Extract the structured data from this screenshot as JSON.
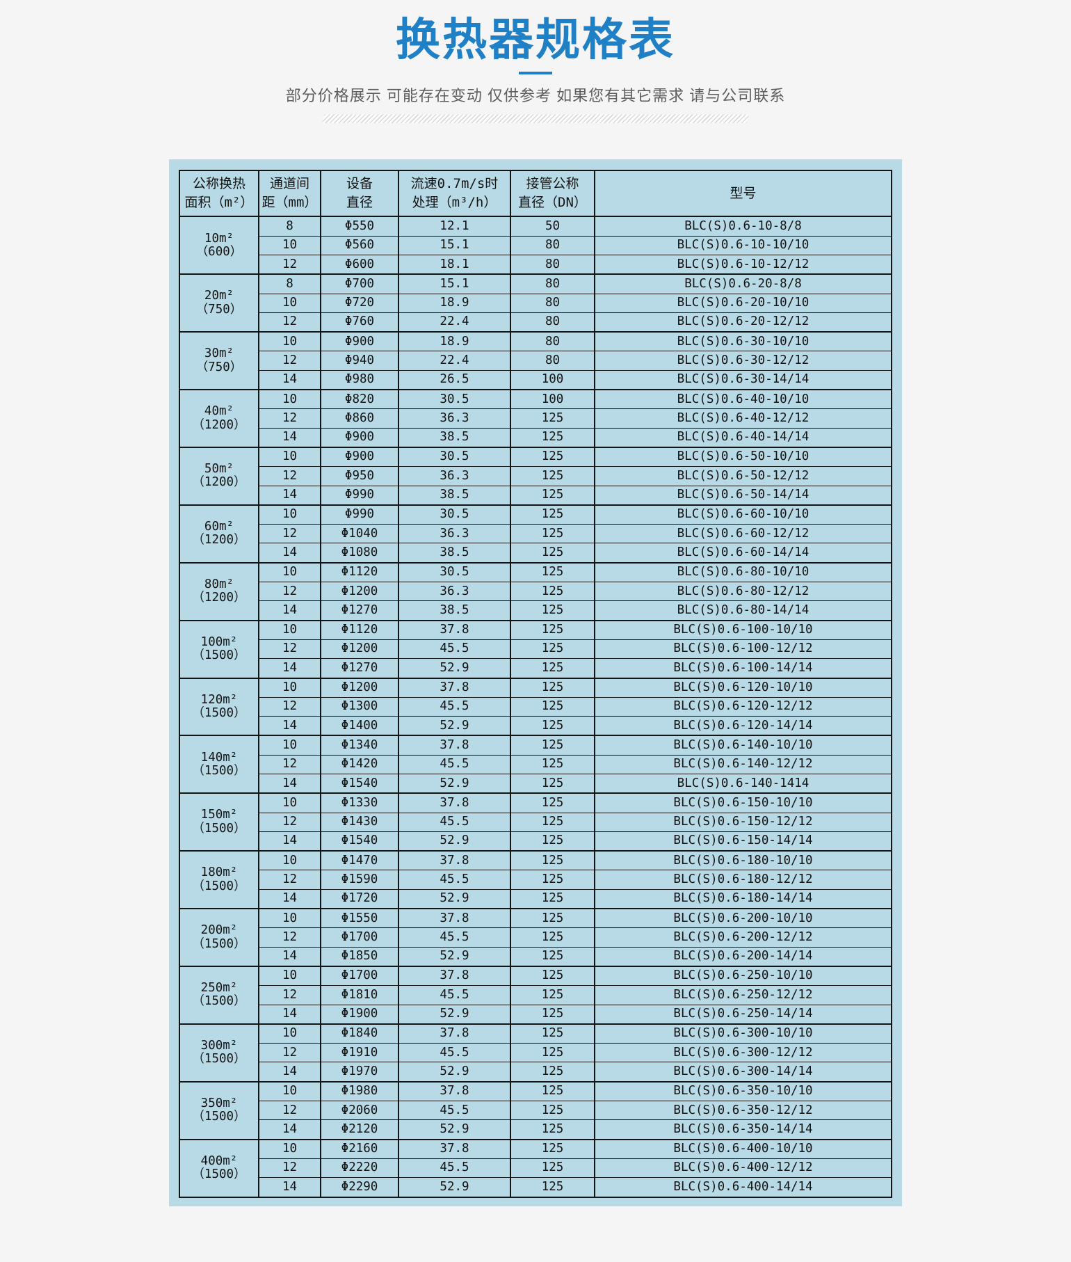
{
  "page": {
    "title": "换热器规格表",
    "subtitle": "部分价格展示 可能存在变动 仅供参考 如果您有其它需求 请与公司联系",
    "accent_color": "#2080c6",
    "panel_color": "#b8d9e6",
    "border_color": "#141414"
  },
  "table": {
    "columns": [
      {
        "line1": "公称换热",
        "line2": "面积（m²）"
      },
      {
        "line1": "通道间",
        "line2": "距（mm）"
      },
      {
        "line1": "设备",
        "line2": "直径"
      },
      {
        "line1": "流速0.7m/s时",
        "line2": "处理（m³/h）"
      },
      {
        "line1": "接管公称",
        "line2": "直径（DN）"
      },
      {
        "line1": "型号",
        "line2": ""
      }
    ],
    "groups": [
      {
        "area": "10m²",
        "capacity": "（600）",
        "rows": [
          [
            "8",
            "Φ550",
            "12.1",
            "50",
            "BLC(S)0.6-10-8/8"
          ],
          [
            "10",
            "Φ560",
            "15.1",
            "80",
            "BLC(S)0.6-10-10/10"
          ],
          [
            "12",
            "Φ600",
            "18.1",
            "80",
            "BLC(S)0.6-10-12/12"
          ]
        ]
      },
      {
        "area": "20m²",
        "capacity": "（750）",
        "rows": [
          [
            "8",
            "Φ700",
            "15.1",
            "80",
            "BLC(S)0.6-20-8/8"
          ],
          [
            "10",
            "Φ720",
            "18.9",
            "80",
            "BLC(S)0.6-20-10/10"
          ],
          [
            "12",
            "Φ760",
            "22.4",
            "80",
            "BLC(S)0.6-20-12/12"
          ]
        ]
      },
      {
        "area": "30m²",
        "capacity": "（750）",
        "rows": [
          [
            "10",
            "Φ900",
            "18.9",
            "80",
            "BLC(S)0.6-30-10/10"
          ],
          [
            "12",
            "Φ940",
            "22.4",
            "80",
            "BLC(S)0.6-30-12/12"
          ],
          [
            "14",
            "Φ980",
            "26.5",
            "100",
            "BLC(S)0.6-30-14/14"
          ]
        ]
      },
      {
        "area": "40m²",
        "capacity": "（1200）",
        "rows": [
          [
            "10",
            "Φ820",
            "30.5",
            "100",
            "BLC(S)0.6-40-10/10"
          ],
          [
            "12",
            "Φ860",
            "36.3",
            "125",
            "BLC(S)0.6-40-12/12"
          ],
          [
            "14",
            "Φ900",
            "38.5",
            "125",
            "BLC(S)0.6-40-14/14"
          ]
        ]
      },
      {
        "area": "50m²",
        "capacity": "（1200）",
        "rows": [
          [
            "10",
            "Φ900",
            "30.5",
            "125",
            "BLC(S)0.6-50-10/10"
          ],
          [
            "12",
            "Φ950",
            "36.3",
            "125",
            "BLC(S)0.6-50-12/12"
          ],
          [
            "14",
            "Φ990",
            "38.5",
            "125",
            "BLC(S)0.6-50-14/14"
          ]
        ]
      },
      {
        "area": "60m²",
        "capacity": "（1200）",
        "rows": [
          [
            "10",
            "Φ990",
            "30.5",
            "125",
            "BLC(S)0.6-60-10/10"
          ],
          [
            "12",
            "Φ1040",
            "36.3",
            "125",
            "BLC(S)0.6-60-12/12"
          ],
          [
            "14",
            "Φ1080",
            "38.5",
            "125",
            "BLC(S)0.6-60-14/14"
          ]
        ]
      },
      {
        "area": "80m²",
        "capacity": "（1200）",
        "rows": [
          [
            "10",
            "Φ1120",
            "30.5",
            "125",
            "BLC(S)0.6-80-10/10"
          ],
          [
            "12",
            "Φ1200",
            "36.3",
            "125",
            "BLC(S)0.6-80-12/12"
          ],
          [
            "14",
            "Φ1270",
            "38.5",
            "125",
            "BLC(S)0.6-80-14/14"
          ]
        ]
      },
      {
        "area": "100m²",
        "capacity": "（1500）",
        "rows": [
          [
            "10",
            "Φ1120",
            "37.8",
            "125",
            "BLC(S)0.6-100-10/10"
          ],
          [
            "12",
            "Φ1200",
            "45.5",
            "125",
            "BLC(S)0.6-100-12/12"
          ],
          [
            "14",
            "Φ1270",
            "52.9",
            "125",
            "BLC(S)0.6-100-14/14"
          ]
        ]
      },
      {
        "area": "120m²",
        "capacity": "（1500）",
        "rows": [
          [
            "10",
            "Φ1200",
            "37.8",
            "125",
            "BLC(S)0.6-120-10/10"
          ],
          [
            "12",
            "Φ1300",
            "45.5",
            "125",
            "BLC(S)0.6-120-12/12"
          ],
          [
            "14",
            "Φ1400",
            "52.9",
            "125",
            "BLC(S)0.6-120-14/14"
          ]
        ]
      },
      {
        "area": "140m²",
        "capacity": "（1500）",
        "rows": [
          [
            "10",
            "Φ1340",
            "37.8",
            "125",
            "BLC(S)0.6-140-10/10"
          ],
          [
            "12",
            "Φ1420",
            "45.5",
            "125",
            "BLC(S)0.6-140-12/12"
          ],
          [
            "14",
            "Φ1540",
            "52.9",
            "125",
            "BLC(S)0.6-140-1414"
          ]
        ]
      },
      {
        "area": "150m²",
        "capacity": "（1500）",
        "rows": [
          [
            "10",
            "Φ1330",
            "37.8",
            "125",
            "BLC(S)0.6-150-10/10"
          ],
          [
            "12",
            "Φ1430",
            "45.5",
            "125",
            "BLC(S)0.6-150-12/12"
          ],
          [
            "14",
            "Φ1540",
            "52.9",
            "125",
            "BLC(S)0.6-150-14/14"
          ]
        ]
      },
      {
        "area": "180m²",
        "capacity": "（1500）",
        "rows": [
          [
            "10",
            "Φ1470",
            "37.8",
            "125",
            "BLC(S)0.6-180-10/10"
          ],
          [
            "12",
            "Φ1590",
            "45.5",
            "125",
            "BLC(S)0.6-180-12/12"
          ],
          [
            "14",
            "Φ1720",
            "52.9",
            "125",
            "BLC(S)0.6-180-14/14"
          ]
        ]
      },
      {
        "area": "200m²",
        "capacity": "（1500）",
        "rows": [
          [
            "10",
            "Φ1550",
            "37.8",
            "125",
            "BLC(S)0.6-200-10/10"
          ],
          [
            "12",
            "Φ1700",
            "45.5",
            "125",
            "BLC(S)0.6-200-12/12"
          ],
          [
            "14",
            "Φ1850",
            "52.9",
            "125",
            "BLC(S)0.6-200-14/14"
          ]
        ]
      },
      {
        "area": "250m²",
        "capacity": "（1500）",
        "rows": [
          [
            "10",
            "Φ1700",
            "37.8",
            "125",
            "BLC(S)0.6-250-10/10"
          ],
          [
            "12",
            "Φ1810",
            "45.5",
            "125",
            "BLC(S)0.6-250-12/12"
          ],
          [
            "14",
            "Φ1900",
            "52.9",
            "125",
            "BLC(S)0.6-250-14/14"
          ]
        ]
      },
      {
        "area": "300m²",
        "capacity": "（1500）",
        "rows": [
          [
            "10",
            "Φ1840",
            "37.8",
            "125",
            "BLC(S)0.6-300-10/10"
          ],
          [
            "12",
            "Φ1910",
            "45.5",
            "125",
            "BLC(S)0.6-300-12/12"
          ],
          [
            "14",
            "Φ1970",
            "52.9",
            "125",
            "BLC(S)0.6-300-14/14"
          ]
        ]
      },
      {
        "area": "350m²",
        "capacity": "（1500）",
        "rows": [
          [
            "10",
            "Φ1980",
            "37.8",
            "125",
            "BLC(S)0.6-350-10/10"
          ],
          [
            "12",
            "Φ2060",
            "45.5",
            "125",
            "BLC(S)0.6-350-12/12"
          ],
          [
            "14",
            "Φ2120",
            "52.9",
            "125",
            "BLC(S)0.6-350-14/14"
          ]
        ]
      },
      {
        "area": "400m²",
        "capacity": "（1500）",
        "rows": [
          [
            "10",
            "Φ2160",
            "37.8",
            "125",
            "BLC(S)0.6-400-10/10"
          ],
          [
            "12",
            "Φ2220",
            "45.5",
            "125",
            "BLC(S)0.6-400-12/12"
          ],
          [
            "14",
            "Φ2290",
            "52.9",
            "125",
            "BLC(S)0.6-400-14/14"
          ]
        ]
      }
    ]
  }
}
